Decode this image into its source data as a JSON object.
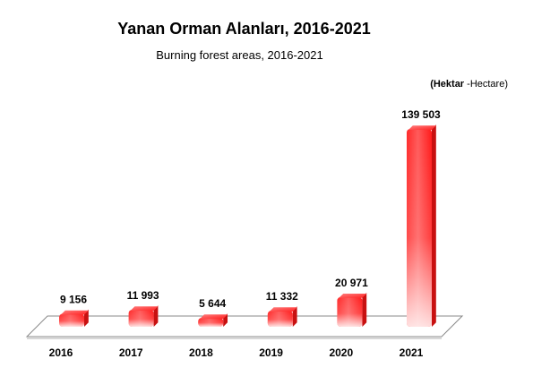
{
  "chart_data": {
    "type": "bar",
    "title": "Yanan Orman Alanları, 2016-2021",
    "subtitle": "Burning forest areas, 2016-2021",
    "unit_primary": "(Hektar",
    "unit_secondary": " -Hectare)",
    "categories": [
      "2016",
      "2017",
      "2018",
      "2019",
      "2020",
      "2021"
    ],
    "values": [
      9156,
      11993,
      5644,
      11332,
      20971,
      139503
    ],
    "value_labels": [
      "9 156",
      "11 993",
      "5 644",
      "11 332",
      "20 971",
      "139 503"
    ],
    "xlabel": "",
    "ylabel": "",
    "ylim": [
      0,
      139503
    ],
    "grid": false,
    "legend": "none",
    "bar_color": "#ff1a1a",
    "bar_highlight": "#ffffff"
  }
}
